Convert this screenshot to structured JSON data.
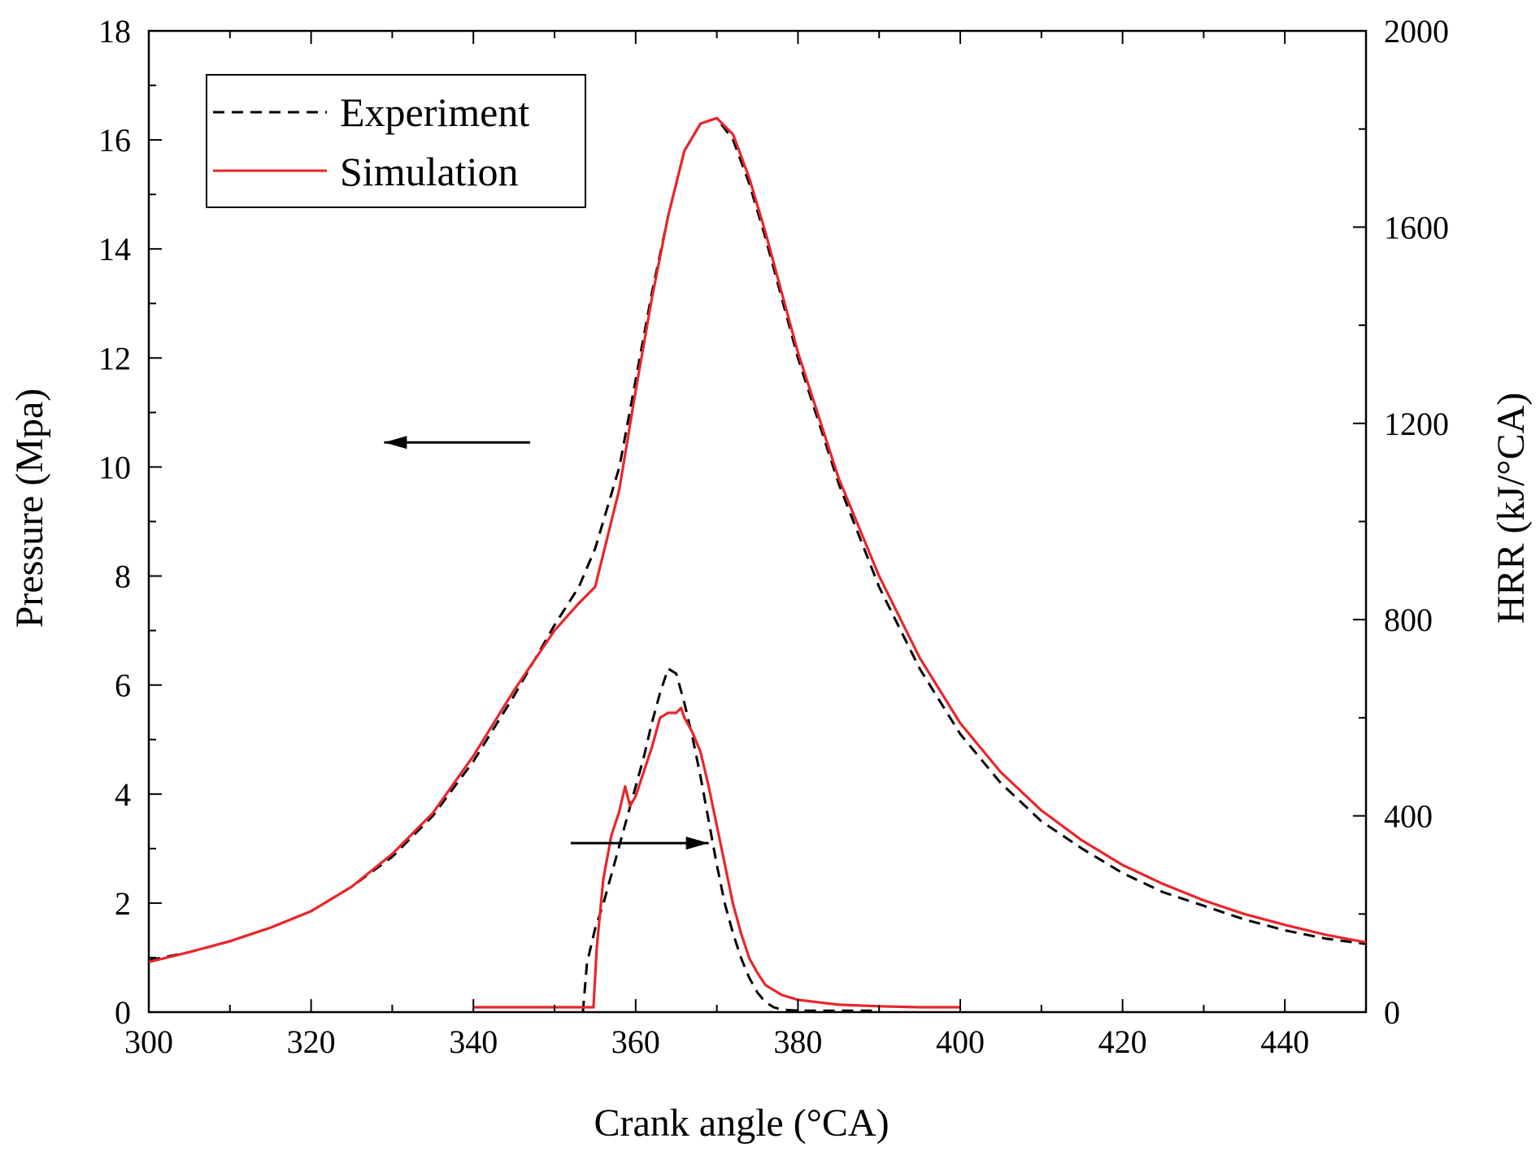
{
  "chart_data": {
    "type": "line",
    "title": "",
    "xlabel": "Crank angle (°CA)",
    "ylabel": "Pressure (Mpa)",
    "y2label": "HRR (kJ/°CA)",
    "xlim": [
      300,
      450
    ],
    "ylim": [
      0,
      18
    ],
    "y2lim": [
      0,
      2000
    ],
    "x_ticks": [
      300,
      320,
      340,
      360,
      380,
      400,
      420,
      440
    ],
    "y_ticks": [
      0,
      2,
      4,
      6,
      8,
      10,
      12,
      14,
      16,
      18
    ],
    "y2_ticks": [
      0,
      400,
      800,
      1200,
      1600,
      2000
    ],
    "grid": false,
    "legend_position": "top-left",
    "legend": [
      {
        "name": "Experiment",
        "color": "#000000",
        "style": "dashed"
      },
      {
        "name": "Simulation",
        "color": "#e8262a",
        "style": "solid"
      }
    ],
    "series": [
      {
        "name": "Experiment",
        "axis": "left",
        "quantity": "Pressure",
        "color": "#000000",
        "style": "dashed",
        "x": [
          300,
          305,
          310,
          315,
          320,
          325,
          330,
          335,
          340,
          345,
          350,
          353,
          355,
          358,
          360,
          362,
          364,
          366,
          368,
          370,
          372,
          374,
          376,
          378,
          380,
          385,
          390,
          395,
          400,
          405,
          410,
          415,
          420,
          425,
          430,
          435,
          440,
          445,
          450
        ],
        "y": [
          0.95,
          1.1,
          1.3,
          1.55,
          1.85,
          2.3,
          2.85,
          3.6,
          4.6,
          5.8,
          7.1,
          7.8,
          8.5,
          10.0,
          11.6,
          13.2,
          14.6,
          15.8,
          16.3,
          16.4,
          16.0,
          15.2,
          14.2,
          13.1,
          12.0,
          9.7,
          7.8,
          6.3,
          5.1,
          4.2,
          3.5,
          3.0,
          2.55,
          2.2,
          1.95,
          1.7,
          1.5,
          1.35,
          1.25
        ]
      },
      {
        "name": "Simulation",
        "axis": "left",
        "quantity": "Pressure",
        "color": "#e8262a",
        "style": "solid",
        "x": [
          300,
          305,
          310,
          315,
          320,
          325,
          330,
          335,
          340,
          345,
          350,
          353,
          355,
          358,
          360,
          362,
          364,
          366,
          368,
          370,
          372,
          374,
          376,
          378,
          380,
          385,
          390,
          395,
          400,
          405,
          410,
          415,
          420,
          425,
          430,
          435,
          440,
          445,
          450
        ],
        "y": [
          0.92,
          1.1,
          1.3,
          1.55,
          1.85,
          2.3,
          2.9,
          3.65,
          4.7,
          5.9,
          7.0,
          7.5,
          7.8,
          9.6,
          11.4,
          13.1,
          14.6,
          15.8,
          16.3,
          16.4,
          16.1,
          15.3,
          14.3,
          13.2,
          12.1,
          9.8,
          8.0,
          6.5,
          5.3,
          4.4,
          3.7,
          3.15,
          2.7,
          2.35,
          2.05,
          1.8,
          1.6,
          1.42,
          1.28
        ]
      },
      {
        "name": "Experiment",
        "axis": "right",
        "quantity": "HRR",
        "color": "#000000",
        "style": "dashed",
        "x": [
          353.5,
          354,
          355,
          356,
          357,
          358,
          359,
          360,
          361,
          362,
          363,
          364,
          365,
          366,
          367,
          368,
          369,
          370,
          371,
          372,
          373,
          374,
          375,
          376,
          377,
          378,
          380,
          385,
          390
        ],
        "y": [
          0,
          100,
          170,
          220,
          280,
          340,
          400,
          460,
          520,
          590,
          650,
          700,
          690,
          630,
          560,
          480,
          390,
          300,
          220,
          160,
          110,
          70,
          40,
          20,
          10,
          5,
          3,
          3,
          3
        ]
      },
      {
        "name": "Simulation",
        "axis": "right",
        "quantity": "HRR",
        "color": "#e8262a",
        "style": "solid",
        "x": [
          340,
          354,
          354.8,
          355.2,
          356,
          357,
          358,
          358.7,
          359.3,
          360,
          361,
          362,
          363,
          364,
          365,
          365.6,
          366,
          367,
          368,
          369,
          370,
          371,
          372,
          373,
          374,
          375,
          376,
          378,
          380,
          385,
          390,
          395,
          400
        ],
        "y": [
          10,
          10,
          10,
          130,
          270,
          360,
          410,
          460,
          420,
          440,
          490,
          540,
          600,
          610,
          610,
          620,
          600,
          570,
          530,
          460,
          380,
          300,
          220,
          160,
          110,
          80,
          55,
          35,
          25,
          15,
          12,
          10,
          10
        ]
      }
    ],
    "annotations": [
      {
        "type": "arrow",
        "direction": "left",
        "meaning": "pressure curves use left axis"
      },
      {
        "type": "arrow",
        "direction": "right",
        "meaning": "HRR curves use right axis"
      }
    ]
  }
}
